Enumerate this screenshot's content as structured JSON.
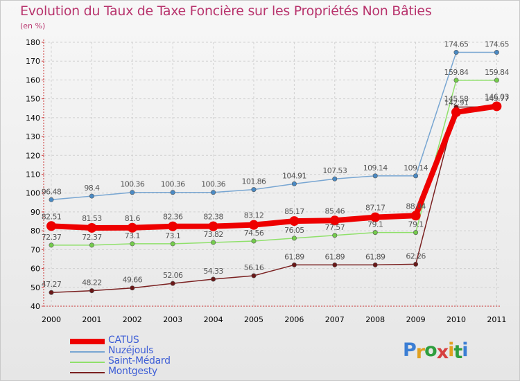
{
  "title": "Evolution du Taux de Taxe Foncière sur les Propriétés Non Bâties",
  "unit_label": "(en %)",
  "brand": {
    "letters": [
      "P",
      "r",
      "o",
      "x",
      "i",
      "t",
      "i"
    ],
    "colors": [
      "#3b7ed4",
      "#e0a020",
      "#2e9e3e",
      "#d64040",
      "#e0a020",
      "#2e9e3e",
      "#3b7ed4"
    ]
  },
  "chart_data": {
    "type": "line",
    "title": "Evolution du Taux de Taxe Foncière sur les Propriétés Non Bâties",
    "ylabel": "(en %)",
    "xlabel": "",
    "categories": [
      "2000",
      "2001",
      "2002",
      "2003",
      "2004",
      "2005",
      "2006",
      "2007",
      "2008",
      "2009",
      "2010",
      "2011"
    ],
    "y_ticks": [
      "40",
      "50",
      "60",
      "70",
      "80",
      "90",
      "100",
      "110",
      "120",
      "130",
      "140",
      "150",
      "160",
      "170",
      "180"
    ],
    "ylim": [
      40,
      180
    ],
    "grid": true,
    "legend_position": "bottom-left",
    "series": [
      {
        "name": "Montgesty",
        "color": "#7a2020",
        "marker": "#6a1818",
        "values": [
          47.27,
          48.22,
          49.66,
          52.06,
          54.33,
          56.16,
          61.89,
          61.89,
          61.89,
          62.26,
          145.58,
          145.77
        ],
        "labels": [
          "47.27",
          "48.22",
          "49.66",
          "52.06",
          "54.33",
          "56.16",
          "61.89",
          "61.89",
          "61.89",
          "62.26",
          "145.58",
          "145.77"
        ]
      },
      {
        "name": "Saint-Médard",
        "color": "#8fe06a",
        "marker": "#74cc4c",
        "values": [
          72.37,
          72.37,
          73.1,
          73.1,
          73.82,
          74.56,
          76.05,
          77.57,
          79.1,
          79.1,
          159.84,
          159.84
        ],
        "labels": [
          "72.37",
          "72.37",
          "73.1",
          "73.1",
          "73.82",
          "74.56",
          "76.05",
          "77.57",
          "79.1",
          "79.1",
          "159.84",
          "159.84"
        ]
      },
      {
        "name": "Nuzéjouls",
        "color": "#78a6d2",
        "marker": "#4a8ac4",
        "values": [
          96.48,
          98.4,
          100.36,
          100.36,
          100.36,
          101.86,
          104.91,
          107.53,
          109.14,
          109.14,
          174.65,
          174.65
        ],
        "labels": [
          "96.48",
          "98.4",
          "100.36",
          "100.36",
          "100.36",
          "101.86",
          "104.91",
          "107.53",
          "109.14",
          "109.14",
          "174.65",
          "174.65"
        ]
      },
      {
        "name": "CATUS",
        "color": "#ee0000",
        "marker": "#ee0000",
        "values": [
          82.51,
          81.53,
          81.6,
          82.36,
          82.38,
          83.12,
          85.17,
          85.46,
          87.17,
          88.04,
          142.91,
          146.03
        ],
        "labels": [
          "82.51",
          "81.53",
          "81.6",
          "82.36",
          "82.38",
          "83.12",
          "85.17",
          "85.46",
          "87.17",
          "88.04",
          "142.91",
          "146.03"
        ]
      }
    ],
    "legend": [
      "CATUS",
      "Nuzéjouls",
      "Saint-Médard",
      "Montgesty"
    ]
  }
}
